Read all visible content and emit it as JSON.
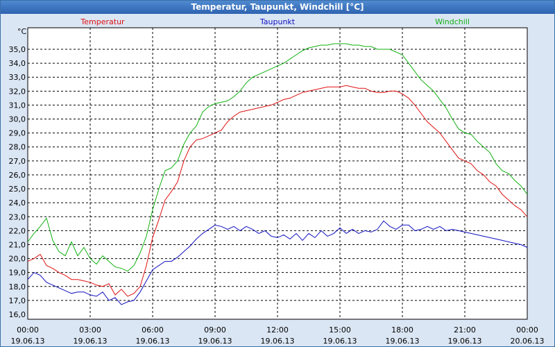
{
  "window": {
    "title": "Temperatur, Taupunkt, Windchill [°C]"
  },
  "chart_data": {
    "type": "line",
    "title": "Temperatur, Taupunkt, Windchill [°C]",
    "ylabel": "°C",
    "ylim": [
      16.0,
      35.5
    ],
    "yticks": [
      "16,0",
      "17,0",
      "18,0",
      "19,0",
      "20,0",
      "21,0",
      "22,0",
      "23,0",
      "24,0",
      "25,0",
      "26,0",
      "27,0",
      "28,0",
      "29,0",
      "30,0",
      "31,0",
      "32,0",
      "33,0",
      "34,0",
      "35,0"
    ],
    "xlim": [
      0,
      24
    ],
    "xticks": [
      {
        "x": 0,
        "time": "00:00",
        "date": "19.06.13"
      },
      {
        "x": 3,
        "time": "03:00",
        "date": "19.06.13"
      },
      {
        "x": 6,
        "time": "06:00",
        "date": "19.06.13"
      },
      {
        "x": 9,
        "time": "09:00",
        "date": "19.06.13"
      },
      {
        "x": 12,
        "time": "12:00",
        "date": "19.06.13"
      },
      {
        "x": 15,
        "time": "15:00",
        "date": "19.06.13"
      },
      {
        "x": 18,
        "time": "18:00",
        "date": "19.06.13"
      },
      {
        "x": 21,
        "time": "21:00",
        "date": "19.06.13"
      },
      {
        "x": 24,
        "time": "00:00",
        "date": "20.06.13"
      }
    ],
    "grid": true,
    "series": [
      {
        "name": "Temperatur",
        "color": "#e01010",
        "x": [
          0,
          0.3,
          0.6,
          0.9,
          1.2,
          1.5,
          1.8,
          2.1,
          2.4,
          2.7,
          3.0,
          3.3,
          3.6,
          3.9,
          4.2,
          4.5,
          4.8,
          5.1,
          5.4,
          5.7,
          6.0,
          6.3,
          6.6,
          6.9,
          7.2,
          7.5,
          7.8,
          8.1,
          8.4,
          8.7,
          9.0,
          9.3,
          9.6,
          9.9,
          10.2,
          10.5,
          10.8,
          11.1,
          11.4,
          11.7,
          12.0,
          12.3,
          12.6,
          12.9,
          13.2,
          13.5,
          13.8,
          14.1,
          14.4,
          14.7,
          15.0,
          15.3,
          15.6,
          15.9,
          16.2,
          16.5,
          16.8,
          17.1,
          17.4,
          17.7,
          18.0,
          18.3,
          18.6,
          18.9,
          19.2,
          19.5,
          19.8,
          20.1,
          20.4,
          20.7,
          21.0,
          21.3,
          21.6,
          21.9,
          22.2,
          22.5,
          22.8,
          23.1,
          23.4,
          23.7,
          24.0
        ],
        "values": [
          19.8,
          20.0,
          20.3,
          19.5,
          19.3,
          19.0,
          18.8,
          18.5,
          18.5,
          18.4,
          18.3,
          18.1,
          18.0,
          18.2,
          17.4,
          17.8,
          17.3,
          17.5,
          18.0,
          19.5,
          21.5,
          22.8,
          24.2,
          24.8,
          25.5,
          27.0,
          28.0,
          28.5,
          28.6,
          28.8,
          29.0,
          29.2,
          29.8,
          30.2,
          30.5,
          30.6,
          30.7,
          30.8,
          30.9,
          31.0,
          31.2,
          31.4,
          31.5,
          31.7,
          31.9,
          32.0,
          32.1,
          32.2,
          32.3,
          32.3,
          32.3,
          32.4,
          32.3,
          32.2,
          32.2,
          32.0,
          31.9,
          31.9,
          32.0,
          32.0,
          31.8,
          31.5,
          31.0,
          30.4,
          29.8,
          29.4,
          29.0,
          28.4,
          27.8,
          27.2,
          27.0,
          26.8,
          26.3,
          26.0,
          25.5,
          25.2,
          24.6,
          24.2,
          23.8,
          23.5,
          23.0
        ]
      },
      {
        "name": "Taupunkt",
        "color": "#1010c0",
        "x": [
          0,
          0.3,
          0.6,
          0.9,
          1.2,
          1.5,
          1.8,
          2.1,
          2.4,
          2.7,
          3.0,
          3.3,
          3.6,
          3.9,
          4.2,
          4.5,
          4.8,
          5.1,
          5.4,
          5.7,
          6.0,
          6.3,
          6.6,
          6.9,
          7.2,
          7.5,
          7.8,
          8.1,
          8.4,
          8.7,
          9.0,
          9.3,
          9.6,
          9.9,
          10.2,
          10.5,
          10.8,
          11.1,
          11.4,
          11.7,
          12.0,
          12.3,
          12.6,
          12.9,
          13.2,
          13.5,
          13.8,
          14.1,
          14.4,
          14.7,
          15.0,
          15.3,
          15.6,
          15.9,
          16.2,
          16.5,
          16.8,
          17.1,
          17.4,
          17.7,
          18.0,
          18.3,
          18.6,
          18.9,
          19.2,
          19.5,
          19.8,
          20.1,
          20.4,
          20.7,
          21.0,
          21.3,
          21.6,
          21.9,
          22.2,
          22.5,
          22.8,
          23.1,
          23.4,
          23.7,
          24.0
        ],
        "values": [
          18.5,
          19.0,
          18.8,
          18.3,
          18.1,
          17.9,
          17.7,
          17.5,
          17.6,
          17.6,
          17.4,
          17.3,
          17.6,
          17.0,
          17.2,
          16.7,
          16.9,
          17.0,
          17.6,
          18.4,
          19.2,
          19.5,
          19.8,
          19.8,
          20.1,
          20.5,
          20.9,
          21.4,
          21.8,
          22.1,
          22.4,
          22.3,
          22.1,
          22.3,
          22.0,
          22.3,
          22.1,
          21.8,
          22.0,
          21.6,
          21.5,
          21.7,
          21.4,
          21.8,
          21.3,
          21.8,
          21.5,
          22.0,
          21.6,
          21.8,
          22.2,
          21.8,
          22.1,
          21.8,
          22.0,
          21.9,
          22.1,
          22.7,
          22.3,
          22.1,
          22.4,
          22.4,
          22.0,
          22.1,
          22.3,
          22.1,
          22.3,
          22.0,
          22.1,
          22.0,
          21.9,
          21.8,
          21.7,
          21.6,
          21.5,
          21.4,
          21.3,
          21.2,
          21.1,
          21.0,
          20.8
        ]
      },
      {
        "name": "Windchill",
        "color": "#10b010",
        "x": [
          0,
          0.3,
          0.6,
          0.9,
          1.2,
          1.5,
          1.8,
          2.1,
          2.4,
          2.7,
          3.0,
          3.3,
          3.6,
          3.9,
          4.2,
          4.5,
          4.8,
          5.1,
          5.4,
          5.7,
          6.0,
          6.3,
          6.6,
          6.9,
          7.2,
          7.5,
          7.8,
          8.1,
          8.4,
          8.7,
          9.0,
          9.3,
          9.6,
          9.9,
          10.2,
          10.5,
          10.8,
          11.1,
          11.4,
          11.7,
          12.0,
          12.3,
          12.6,
          12.9,
          13.2,
          13.5,
          13.8,
          14.1,
          14.4,
          14.7,
          15.0,
          15.3,
          15.6,
          15.9,
          16.2,
          16.5,
          16.8,
          17.1,
          17.4,
          17.7,
          18.0,
          18.3,
          18.6,
          18.9,
          19.2,
          19.5,
          19.8,
          20.1,
          20.4,
          20.7,
          21.0,
          21.3,
          21.6,
          21.9,
          22.2,
          22.5,
          22.8,
          23.1,
          23.4,
          23.7,
          24.0
        ],
        "values": [
          21.2,
          21.8,
          22.3,
          22.9,
          21.3,
          20.5,
          20.2,
          21.2,
          20.2,
          20.8,
          20.0,
          19.6,
          20.2,
          19.8,
          19.4,
          19.3,
          19.1,
          19.5,
          20.4,
          21.6,
          23.5,
          25.0,
          26.3,
          26.5,
          27.0,
          28.2,
          29.0,
          29.5,
          30.5,
          30.9,
          31.1,
          31.2,
          31.3,
          31.6,
          32.0,
          32.6,
          33.0,
          33.2,
          33.4,
          33.6,
          33.8,
          34.0,
          34.3,
          34.6,
          34.9,
          35.1,
          35.2,
          35.3,
          35.3,
          35.4,
          35.4,
          35.4,
          35.3,
          35.3,
          35.2,
          35.2,
          35.0,
          35.0,
          35.0,
          34.8,
          34.6,
          34.0,
          33.4,
          32.8,
          32.4,
          32.0,
          31.4,
          30.8,
          30.0,
          29.3,
          29.0,
          28.9,
          28.4,
          28.0,
          27.6,
          26.8,
          26.3,
          26.1,
          25.6,
          25.2,
          24.6
        ]
      }
    ]
  }
}
